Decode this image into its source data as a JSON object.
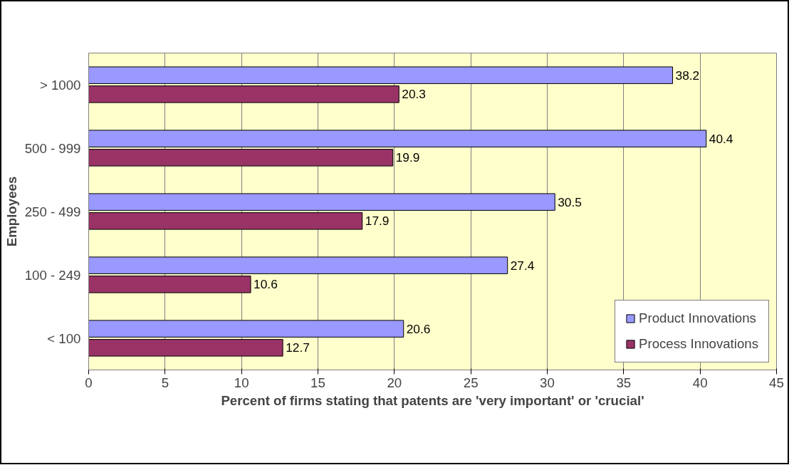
{
  "chart_data": {
    "type": "bar",
    "orientation": "horizontal",
    "xlabel": "Percent of firms stating that patents are 'very important' or 'crucial'",
    "ylabel": "Employees",
    "categories": [
      "> 1000",
      "500 - 999",
      "250 - 499",
      "100 - 249",
      "< 100"
    ],
    "series": [
      {
        "name": "Product Innovations",
        "color": "#9999ff",
        "values": [
          38.2,
          40.4,
          30.5,
          27.4,
          20.6
        ]
      },
      {
        "name": "Process Innovations",
        "color": "#993366",
        "values": [
          20.3,
          19.9,
          17.9,
          10.6,
          12.7
        ]
      }
    ],
    "xlim": [
      0,
      45
    ],
    "xticks": [
      0,
      5,
      10,
      15,
      20,
      25,
      30,
      35,
      40,
      45
    ],
    "grid": "x",
    "legend": "bottom right",
    "data_labels": true
  }
}
